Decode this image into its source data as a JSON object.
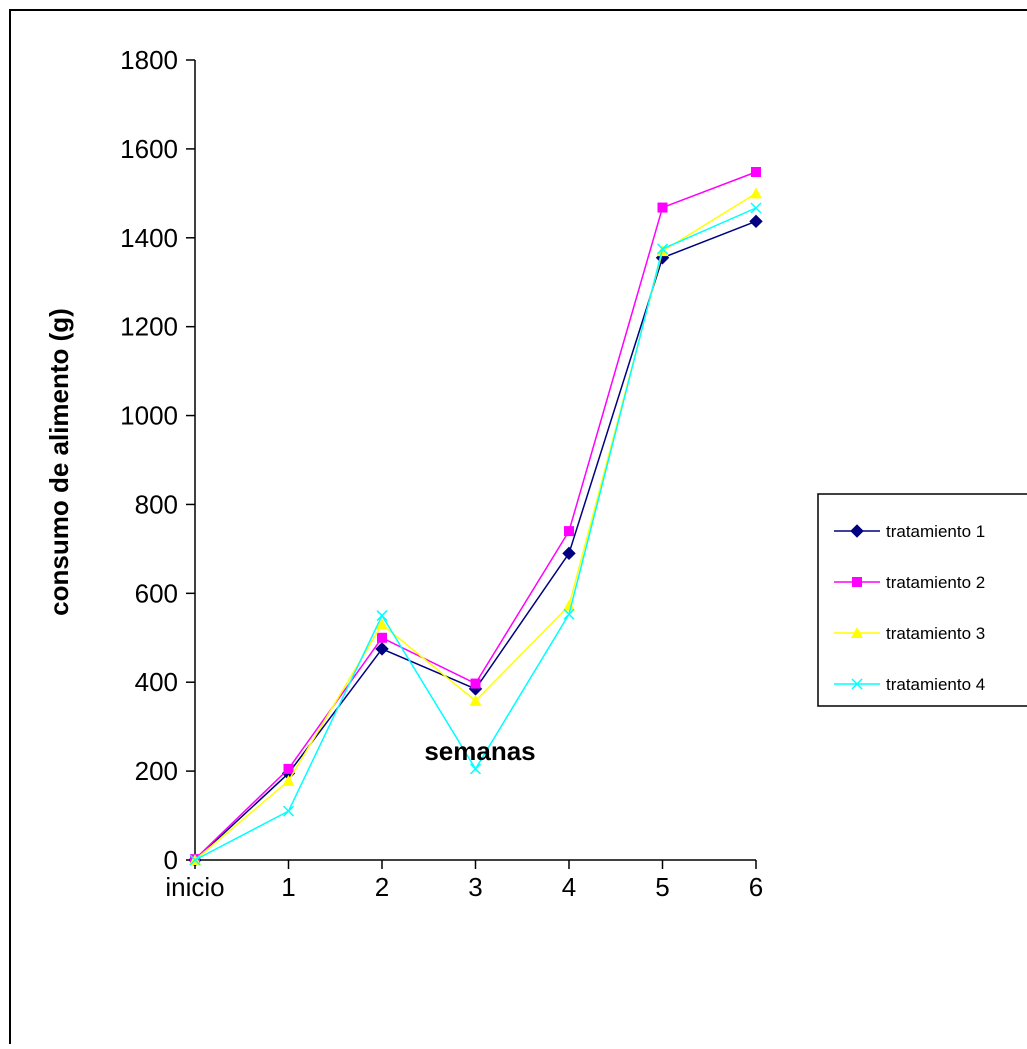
{
  "chart_data": {
    "type": "line",
    "title": "",
    "xlabel": "semanas",
    "ylabel": "consumo de alimento (g)",
    "categories": [
      "inicio",
      "1",
      "2",
      "3",
      "4",
      "5",
      "6"
    ],
    "ylim": [
      0,
      1800
    ],
    "yticks": [
      "0",
      "200",
      "400",
      "600",
      "800",
      "1000",
      "1200",
      "1400",
      "1600",
      "1800"
    ],
    "grid": false,
    "legend_position": "right",
    "series": [
      {
        "name": "tratamiento 1",
        "color": "#000080",
        "marker": "diamond",
        "values": [
          0,
          195,
          475,
          385,
          690,
          1355,
          1437
        ]
      },
      {
        "name": "tratamiento 2",
        "color": "#FF00FF",
        "marker": "square",
        "values": [
          2,
          205,
          500,
          397,
          740,
          1468,
          1548
        ]
      },
      {
        "name": "tratamiento 3",
        "color": "#FFFF00",
        "marker": "triangle",
        "values": [
          0,
          178,
          530,
          358,
          572,
          1370,
          1500
        ]
      },
      {
        "name": "tratamiento 4",
        "color": "#00FFFF",
        "marker": "x",
        "values": [
          0,
          110,
          550,
          205,
          553,
          1375,
          1467
        ]
      }
    ]
  }
}
